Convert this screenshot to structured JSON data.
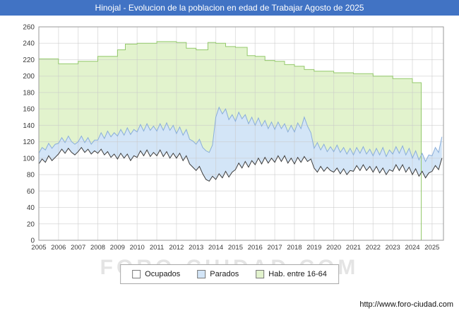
{
  "title_bar": {
    "bg_color": "#4173c4"
  },
  "watermark": "FORO-CIUDAD.COM",
  "footer": {
    "url": "http://www.foro-ciudad.com"
  },
  "chart_data": {
    "type": "area",
    "title": "Hinojal - Evolucion de la poblacion en edad de Trabajar Agosto de 2025",
    "xlabel": "",
    "ylabel": "",
    "xlim": [
      2005,
      2025.58
    ],
    "ylim": [
      0,
      260
    ],
    "y_tick_step": 20,
    "x_ticks": [
      2005,
      2006,
      2007,
      2008,
      2009,
      2010,
      2011,
      2012,
      2013,
      2014,
      2015,
      2016,
      2017,
      2018,
      2019,
      2020,
      2021,
      2022,
      2023,
      2024,
      2025
    ],
    "x_step": 0.1666667,
    "grid": true,
    "legend_position": "bottom",
    "colors": {
      "grid": "#c9c9c9",
      "plot_border": "#9a9a9a"
    },
    "series": [
      {
        "name": "Ocupados",
        "fill": "#ffffff",
        "line": "#3c3c3c",
        "values": [
          93,
          99,
          95,
          103,
          97,
          101,
          105,
          111,
          106,
          112,
          107,
          104,
          108,
          113,
          107,
          111,
          105,
          109,
          106,
          111,
          104,
          108,
          101,
          105,
          99,
          106,
          100,
          105,
          97,
          103,
          101,
          109,
          103,
          110,
          102,
          107,
          103,
          110,
          102,
          108,
          100,
          106,
          100,
          106,
          97,
          103,
          93,
          89,
          85,
          90,
          81,
          74,
          72,
          78,
          74,
          81,
          76,
          84,
          77,
          83,
          86,
          94,
          88,
          96,
          89,
          97,
          92,
          100,
          93,
          101,
          94,
          100,
          95,
          103,
          96,
          103,
          94,
          100,
          93,
          101,
          95,
          102,
          96,
          99,
          88,
          83,
          90,
          84,
          89,
          85,
          83,
          88,
          81,
          87,
          80,
          85,
          84,
          91,
          85,
          92,
          85,
          90,
          83,
          90,
          82,
          88,
          80,
          86,
          84,
          92,
          85,
          92,
          83,
          89,
          80,
          87,
          78,
          84,
          76,
          82,
          84,
          91,
          86,
          100
        ]
      },
      {
        "name": "Parados",
        "fill": "#d3e5f7",
        "line": "#8aaeda",
        "values": [
          106,
          113,
          110,
          118,
          112,
          117,
          118,
          125,
          119,
          127,
          120,
          117,
          120,
          127,
          119,
          125,
          117,
          122,
          122,
          131,
          124,
          133,
          126,
          131,
          127,
          135,
          128,
          137,
          129,
          135,
          132,
          141,
          133,
          142,
          134,
          139,
          133,
          142,
          134,
          143,
          134,
          140,
          130,
          138,
          128,
          135,
          123,
          121,
          117,
          123,
          113,
          109,
          107,
          116,
          150,
          162,
          154,
          160,
          147,
          153,
          145,
          156,
          148,
          153,
          142,
          150,
          140,
          149,
          139,
          146,
          136,
          144,
          135,
          144,
          136,
          142,
          132,
          140,
          132,
          143,
          136,
          150,
          139,
          131,
          112,
          119,
          110,
          117,
          108,
          114,
          108,
          116,
          107,
          113,
          105,
          112,
          104,
          113,
          106,
          114,
          105,
          111,
          103,
          112,
          104,
          113,
          102,
          110,
          105,
          114,
          106,
          115,
          104,
          112,
          100,
          109,
          98,
          106,
          96,
          104,
          103,
          113,
          107,
          126
        ]
      },
      {
        "name": "Hab. entre 16-64",
        "fill": "#e2f3cd",
        "line": "#94c96c",
        "steps": [
          [
            2005,
            221
          ],
          [
            2006,
            215
          ],
          [
            2007,
            218
          ],
          [
            2008,
            224
          ],
          [
            2009,
            232
          ],
          [
            2009.4,
            239
          ],
          [
            2010,
            240
          ],
          [
            2011,
            242
          ],
          [
            2012,
            241
          ],
          [
            2012.5,
            234
          ],
          [
            2013,
            232
          ],
          [
            2013.6,
            241
          ],
          [
            2014,
            240
          ],
          [
            2014.5,
            236
          ],
          [
            2015,
            235
          ],
          [
            2015.6,
            225
          ],
          [
            2016,
            224
          ],
          [
            2016.5,
            219
          ],
          [
            2017,
            218
          ],
          [
            2017.5,
            214
          ],
          [
            2018,
            212
          ],
          [
            2018.5,
            208
          ],
          [
            2019,
            206
          ],
          [
            2020,
            204
          ],
          [
            2021,
            203
          ],
          [
            2022,
            200
          ],
          [
            2023,
            197
          ],
          [
            2024,
            192
          ],
          [
            2024.45,
            192
          ]
        ]
      }
    ]
  }
}
